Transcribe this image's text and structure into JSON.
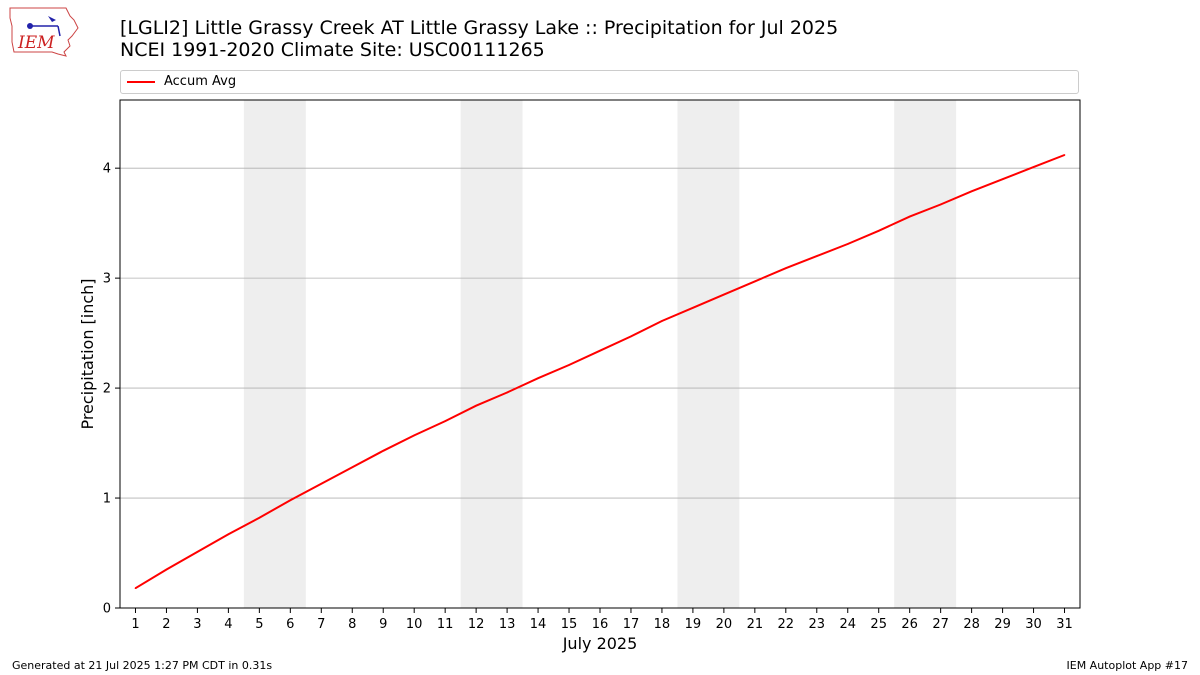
{
  "title_line1": "[LGLI2] Little Grassy Creek  AT Little Grassy Lake :: Precipitation for Jul 2025",
  "title_line2": "NCEI 1991-2020 Climate Site: USC00111265",
  "logo_text": "IEM",
  "footer_left": "Generated at 21 Jul 2025 1:27 PM CDT in 0.31s",
  "footer_right": "IEM Autoplot App #17",
  "colors": {
    "series": "#ff0000",
    "weekend_shade": "#eeeeee",
    "grid": "#b0b0b0"
  },
  "chart_data": {
    "type": "line",
    "xlabel": "July 2025",
    "ylabel": "Precipitation [inch]",
    "x": [
      1,
      2,
      3,
      4,
      5,
      6,
      7,
      8,
      9,
      10,
      11,
      12,
      13,
      14,
      15,
      16,
      17,
      18,
      19,
      20,
      21,
      22,
      23,
      24,
      25,
      26,
      27,
      28,
      29,
      30,
      31
    ],
    "x_ticks": [
      "1",
      "2",
      "3",
      "4",
      "5",
      "6",
      "7",
      "8",
      "9",
      "10",
      "11",
      "12",
      "13",
      "14",
      "15",
      "16",
      "17",
      "18",
      "19",
      "20",
      "21",
      "22",
      "23",
      "24",
      "25",
      "26",
      "27",
      "28",
      "29",
      "30",
      "31"
    ],
    "xlim": [
      0.5,
      31.5
    ],
    "ylim": [
      0,
      4.62
    ],
    "y_ticks": [
      "0",
      "1",
      "2",
      "3",
      "4"
    ],
    "grid": "horizontal",
    "legend_position": "top",
    "shaded_weekends": [
      [
        4.5,
        6.5
      ],
      [
        11.5,
        13.5
      ],
      [
        18.5,
        20.5
      ],
      [
        25.5,
        27.5
      ]
    ],
    "series": [
      {
        "name": "Accum Avg",
        "values": [
          0.18,
          0.35,
          0.51,
          0.67,
          0.82,
          0.98,
          1.13,
          1.28,
          1.43,
          1.57,
          1.7,
          1.84,
          1.96,
          2.09,
          2.21,
          2.34,
          2.47,
          2.61,
          2.73,
          2.85,
          2.97,
          3.09,
          3.2,
          3.31,
          3.43,
          3.56,
          3.67,
          3.79,
          3.9,
          4.01,
          4.12
        ]
      }
    ]
  }
}
